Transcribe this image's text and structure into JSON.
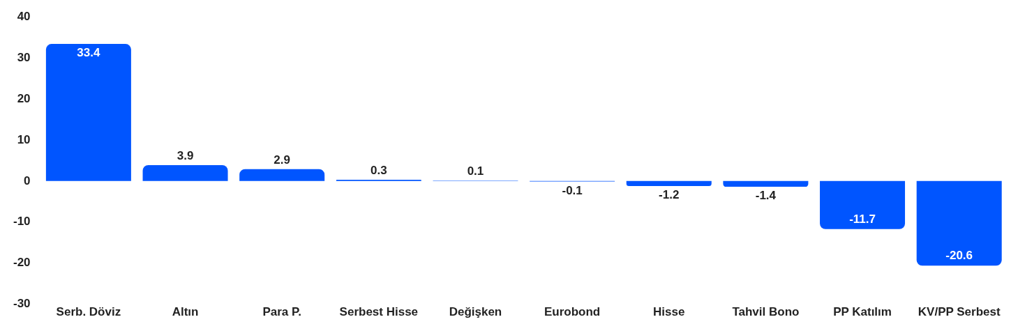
{
  "chart_data": {
    "type": "bar",
    "categories": [
      "Serb. Döviz",
      "Altın",
      "Para P.",
      "Serbest Hisse",
      "Değişken",
      "Eurobond",
      "Hisse",
      "Tahvil Bono",
      "PP Katılım",
      "KV/PP Serbest"
    ],
    "values": [
      33.4,
      3.9,
      2.9,
      0.3,
      0.1,
      -0.1,
      -1.2,
      -1.4,
      -11.7,
      -20.6
    ],
    "color": "#0055ff",
    "ylim": [
      -30,
      40
    ],
    "yticks": [
      -30,
      -20,
      -10,
      0,
      10,
      20,
      30,
      40
    ],
    "grid": false,
    "legend": false,
    "data_labels": true
  }
}
